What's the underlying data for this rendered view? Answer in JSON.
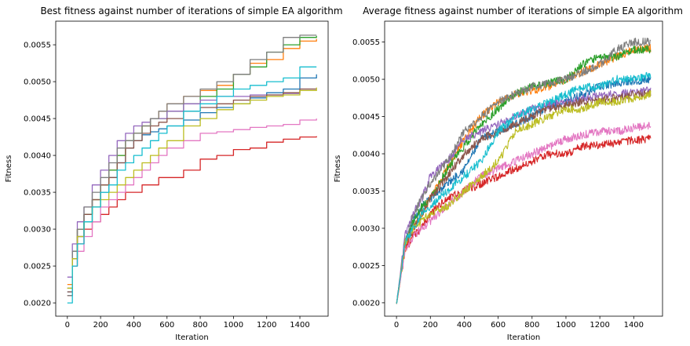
{
  "chart_data": [
    {
      "type": "line",
      "title": "Best fitness against number of iterations of simple EA algorithm",
      "xlabel": "Iteration",
      "ylabel": "Fitness",
      "xlim": [
        -70,
        1570
      ],
      "ylim": [
        0.00182,
        0.00582
      ],
      "xticks": [
        0,
        200,
        400,
        600,
        800,
        1000,
        1200,
        1400
      ],
      "yticks": [
        0.002,
        0.0025,
        0.003,
        0.0035,
        0.004,
        0.0045,
        0.005,
        0.0055
      ],
      "xtick_labels": [
        "0",
        "200",
        "400",
        "600",
        "800",
        "1000",
        "1200",
        "1400"
      ],
      "ytick_labels": [
        "0.0020",
        "0.0025",
        "0.0030",
        "0.0035",
        "0.0040",
        "0.0045",
        "0.0050",
        "0.0055"
      ],
      "grid": false,
      "legend": "none",
      "step": true,
      "series": [
        {
          "color": "#1f77b4",
          "x": [
            0,
            30,
            60,
            100,
            150,
            200,
            250,
            300,
            350,
            400,
            450,
            500,
            550,
            600,
            700,
            800,
            900,
            1000,
            1100,
            1200,
            1300,
            1400,
            1500
          ],
          "values": [
            0.00215,
            0.0026,
            0.0029,
            0.0031,
            0.0033,
            0.0035,
            0.0037,
            0.0039,
            0.0041,
            0.0042,
            0.00428,
            0.00432,
            0.00436,
            0.0044,
            0.00448,
            0.00458,
            0.00465,
            0.0047,
            0.00478,
            0.00485,
            0.0049,
            0.00505,
            0.0051
          ]
        },
        {
          "color": "#ff7f0e",
          "x": [
            0,
            30,
            60,
            100,
            150,
            200,
            250,
            300,
            350,
            400,
            450,
            500,
            550,
            600,
            700,
            800,
            900,
            1000,
            1100,
            1200,
            1300,
            1400,
            1500
          ],
          "values": [
            0.00225,
            0.0027,
            0.003,
            0.0032,
            0.0034,
            0.0036,
            0.0038,
            0.004,
            0.0042,
            0.0043,
            0.0044,
            0.0045,
            0.0046,
            0.0047,
            0.0048,
            0.00488,
            0.00495,
            0.0051,
            0.00525,
            0.0053,
            0.00545,
            0.00555,
            0.00558
          ]
        },
        {
          "color": "#2ca02c",
          "x": [
            0,
            30,
            60,
            100,
            150,
            200,
            250,
            300,
            350,
            400,
            450,
            500,
            550,
            600,
            700,
            800,
            900,
            1000,
            1100,
            1200,
            1300,
            1400,
            1500
          ],
          "values": [
            0.0022,
            0.0027,
            0.003,
            0.0032,
            0.0034,
            0.0036,
            0.0038,
            0.004,
            0.0042,
            0.0043,
            0.0044,
            0.0045,
            0.0045,
            0.0046,
            0.0047,
            0.0048,
            0.0049,
            0.0051,
            0.0052,
            0.0054,
            0.0055,
            0.0056,
            0.00562
          ]
        },
        {
          "color": "#d62728",
          "x": [
            0,
            30,
            60,
            100,
            150,
            200,
            250,
            300,
            350,
            400,
            450,
            500,
            550,
            600,
            700,
            800,
            900,
            1000,
            1100,
            1200,
            1300,
            1400,
            1500
          ],
          "values": [
            0.0021,
            0.0025,
            0.0028,
            0.003,
            0.0031,
            0.0032,
            0.0033,
            0.0034,
            0.0035,
            0.0035,
            0.0036,
            0.0036,
            0.0037,
            0.0037,
            0.0038,
            0.00395,
            0.004,
            0.00408,
            0.0041,
            0.00418,
            0.00422,
            0.00425,
            0.00426
          ]
        },
        {
          "color": "#9467bd",
          "x": [
            0,
            30,
            60,
            100,
            150,
            200,
            250,
            300,
            350,
            400,
            450,
            500,
            550,
            600,
            700,
            800,
            900,
            1000,
            1100,
            1200,
            1300,
            1400,
            1500
          ],
          "values": [
            0.00235,
            0.0028,
            0.0031,
            0.0033,
            0.0036,
            0.0038,
            0.004,
            0.0042,
            0.0043,
            0.0044,
            0.00445,
            0.0045,
            0.0045,
            0.0046,
            0.0047,
            0.00475,
            0.0048,
            0.0048,
            0.00482,
            0.00482,
            0.00484,
            0.0049,
            0.0049
          ]
        },
        {
          "color": "#8c564b",
          "x": [
            0,
            30,
            60,
            100,
            150,
            200,
            250,
            300,
            350,
            400,
            450,
            500,
            550,
            600,
            700,
            800,
            900,
            1000,
            1100,
            1200,
            1300,
            1400,
            1500
          ],
          "values": [
            0.00215,
            0.0026,
            0.0029,
            0.0032,
            0.0034,
            0.0036,
            0.0037,
            0.0039,
            0.0041,
            0.0042,
            0.0043,
            0.0044,
            0.00445,
            0.0045,
            0.0046,
            0.00465,
            0.0047,
            0.00475,
            0.0048,
            0.00482,
            0.00485,
            0.0049,
            0.0049
          ]
        },
        {
          "color": "#e377c2",
          "x": [
            0,
            30,
            60,
            100,
            150,
            200,
            250,
            300,
            350,
            400,
            450,
            500,
            550,
            600,
            700,
            800,
            900,
            1000,
            1100,
            1200,
            1300,
            1400,
            1500
          ],
          "values": [
            0.0022,
            0.0025,
            0.0027,
            0.0029,
            0.0031,
            0.0033,
            0.0034,
            0.0035,
            0.0036,
            0.0037,
            0.0038,
            0.0039,
            0.004,
            0.0041,
            0.0042,
            0.0043,
            0.00432,
            0.00435,
            0.00438,
            0.0044,
            0.00442,
            0.00448,
            0.0045
          ]
        },
        {
          "color": "#7f7f7f",
          "x": [
            0,
            30,
            60,
            100,
            150,
            200,
            250,
            300,
            350,
            400,
            450,
            500,
            550,
            600,
            700,
            800,
            900,
            1000,
            1100,
            1200,
            1300,
            1400,
            1500
          ],
          "values": [
            0.0021,
            0.0027,
            0.003,
            0.0033,
            0.0035,
            0.0037,
            0.0039,
            0.0041,
            0.0042,
            0.0043,
            0.0044,
            0.0045,
            0.0046,
            0.0047,
            0.0048,
            0.0049,
            0.005,
            0.0051,
            0.0053,
            0.0054,
            0.0056,
            0.00563,
            0.00563
          ]
        },
        {
          "color": "#bcbd22",
          "x": [
            0,
            30,
            60,
            100,
            150,
            200,
            250,
            300,
            350,
            400,
            450,
            500,
            550,
            600,
            700,
            800,
            900,
            1000,
            1100,
            1200,
            1300,
            1400,
            1500
          ],
          "values": [
            0.0022,
            0.0026,
            0.0029,
            0.0031,
            0.0033,
            0.0034,
            0.0035,
            0.0036,
            0.0037,
            0.0038,
            0.0039,
            0.004,
            0.0041,
            0.0042,
            0.0044,
            0.0045,
            0.00462,
            0.0047,
            0.00475,
            0.0048,
            0.00482,
            0.00488,
            0.00492
          ]
        },
        {
          "color": "#17becf",
          "x": [
            0,
            30,
            60,
            100,
            150,
            200,
            250,
            300,
            350,
            400,
            450,
            500,
            550,
            600,
            700,
            800,
            900,
            1000,
            1100,
            1200,
            1300,
            1400,
            1500
          ],
          "values": [
            0.002,
            0.0025,
            0.0028,
            0.0031,
            0.0033,
            0.0035,
            0.0036,
            0.0038,
            0.0039,
            0.004,
            0.0041,
            0.0042,
            0.0043,
            0.0044,
            0.0046,
            0.0047,
            0.0048,
            0.0049,
            0.00495,
            0.005,
            0.00505,
            0.0052,
            0.0052
          ]
        }
      ]
    },
    {
      "type": "line",
      "title": "Average fitness against number of iterations of simple EA algorithm",
      "xlabel": "Iteration",
      "ylabel": "Fitness",
      "xlim": [
        -70,
        1570
      ],
      "ylim": [
        0.00182,
        0.00578
      ],
      "xticks": [
        0,
        200,
        400,
        600,
        800,
        1000,
        1200,
        1400
      ],
      "yticks": [
        0.002,
        0.0025,
        0.003,
        0.0035,
        0.004,
        0.0045,
        0.005,
        0.0055
      ],
      "xtick_labels": [
        "0",
        "200",
        "400",
        "600",
        "800",
        "1000",
        "1200",
        "1400"
      ],
      "ytick_labels": [
        "0.0020",
        "0.0025",
        "0.0030",
        "0.0035",
        "0.0040",
        "0.0045",
        "0.0050",
        "0.0055"
      ],
      "grid": false,
      "legend": "none",
      "noisy": true,
      "series": [
        {
          "color": "#1f77b4",
          "x": [
            0,
            50,
            100,
            150,
            200,
            300,
            400,
            500,
            600,
            700,
            800,
            900,
            1000,
            1100,
            1200,
            1300,
            1400,
            1500
          ],
          "values": [
            0.00198,
            0.0028,
            0.0031,
            0.0033,
            0.0034,
            0.0036,
            0.0038,
            0.0042,
            0.0043,
            0.0044,
            0.0045,
            0.00465,
            0.0047,
            0.0048,
            0.0049,
            0.00495,
            0.00498,
            0.005
          ]
        },
        {
          "color": "#ff7f0e",
          "x": [
            0,
            50,
            100,
            150,
            200,
            300,
            400,
            500,
            600,
            700,
            800,
            900,
            1000,
            1100,
            1200,
            1300,
            1400,
            1500
          ],
          "values": [
            0.00198,
            0.0027,
            0.003,
            0.0032,
            0.0034,
            0.0038,
            0.0042,
            0.0045,
            0.0047,
            0.0048,
            0.00485,
            0.0049,
            0.005,
            0.0051,
            0.0052,
            0.0053,
            0.0054,
            0.00542
          ]
        },
        {
          "color": "#2ca02c",
          "x": [
            0,
            50,
            100,
            150,
            200,
            300,
            400,
            500,
            600,
            700,
            800,
            900,
            1000,
            1100,
            1200,
            1300,
            1400,
            1500
          ],
          "values": [
            0.00198,
            0.0028,
            0.0031,
            0.0033,
            0.0034,
            0.0038,
            0.0041,
            0.0044,
            0.0046,
            0.0048,
            0.0049,
            0.00495,
            0.005,
            0.0052,
            0.0053,
            0.0053,
            0.0054,
            0.0054
          ]
        },
        {
          "color": "#d62728",
          "x": [
            0,
            50,
            100,
            150,
            200,
            300,
            400,
            500,
            600,
            700,
            800,
            900,
            1000,
            1100,
            1200,
            1300,
            1400,
            1500
          ],
          "values": [
            0.00198,
            0.0027,
            0.0029,
            0.003,
            0.0032,
            0.0034,
            0.0035,
            0.0036,
            0.0037,
            0.0038,
            0.0039,
            0.004,
            0.004,
            0.0041,
            0.00412,
            0.00415,
            0.00418,
            0.0042
          ]
        },
        {
          "color": "#9467bd",
          "x": [
            0,
            50,
            100,
            150,
            200,
            300,
            400,
            500,
            600,
            700,
            800,
            900,
            1000,
            1100,
            1200,
            1300,
            1400,
            1500
          ],
          "values": [
            0.00198,
            0.0029,
            0.0032,
            0.0034,
            0.0037,
            0.0039,
            0.0042,
            0.0043,
            0.0044,
            0.0045,
            0.0046,
            0.00465,
            0.0047,
            0.00475,
            0.00478,
            0.0048,
            0.00482,
            0.00485
          ]
        },
        {
          "color": "#8c564b",
          "x": [
            0,
            50,
            100,
            150,
            200,
            300,
            400,
            500,
            600,
            700,
            800,
            900,
            1000,
            1100,
            1200,
            1300,
            1400,
            1500
          ],
          "values": [
            0.00198,
            0.0028,
            0.003,
            0.0032,
            0.0034,
            0.0037,
            0.004,
            0.0042,
            0.0043,
            0.0044,
            0.0045,
            0.0046,
            0.00465,
            0.0047,
            0.00472,
            0.00475,
            0.0048,
            0.00482
          ]
        },
        {
          "color": "#e377c2",
          "x": [
            0,
            50,
            100,
            150,
            200,
            300,
            400,
            500,
            600,
            700,
            800,
            900,
            1000,
            1100,
            1200,
            1300,
            1400,
            1500
          ],
          "values": [
            0.00198,
            0.0027,
            0.0029,
            0.003,
            0.0031,
            0.0033,
            0.0035,
            0.0037,
            0.0038,
            0.0039,
            0.004,
            0.0041,
            0.0042,
            0.00425,
            0.0043,
            0.0043,
            0.00435,
            0.00438
          ]
        },
        {
          "color": "#7f7f7f",
          "x": [
            0,
            50,
            100,
            150,
            200,
            300,
            400,
            500,
            600,
            700,
            800,
            900,
            1000,
            1100,
            1200,
            1300,
            1400,
            1500
          ],
          "values": [
            0.00198,
            0.0028,
            0.0032,
            0.0034,
            0.0036,
            0.0039,
            0.0043,
            0.0045,
            0.0047,
            0.0048,
            0.0049,
            0.00495,
            0.005,
            0.0051,
            0.0052,
            0.0054,
            0.0055,
            0.0055
          ]
        },
        {
          "color": "#bcbd22",
          "x": [
            0,
            50,
            100,
            150,
            200,
            300,
            400,
            500,
            600,
            700,
            800,
            900,
            1000,
            1100,
            1200,
            1300,
            1400,
            1500
          ],
          "values": [
            0.00198,
            0.0028,
            0.003,
            0.0031,
            0.0032,
            0.0033,
            0.0035,
            0.0037,
            0.0039,
            0.0043,
            0.0044,
            0.0045,
            0.0046,
            0.0046,
            0.0047,
            0.0047,
            0.00475,
            0.0048
          ]
        },
        {
          "color": "#17becf",
          "x": [
            0,
            50,
            100,
            150,
            200,
            300,
            400,
            500,
            600,
            700,
            800,
            900,
            1000,
            1100,
            1200,
            1300,
            1400,
            1500
          ],
          "values": [
            0.00198,
            0.0028,
            0.003,
            0.0032,
            0.0033,
            0.0035,
            0.0037,
            0.0039,
            0.0043,
            0.0045,
            0.0046,
            0.0047,
            0.0048,
            0.0049,
            0.0049,
            0.005,
            0.005,
            0.00505
          ]
        }
      ]
    }
  ]
}
